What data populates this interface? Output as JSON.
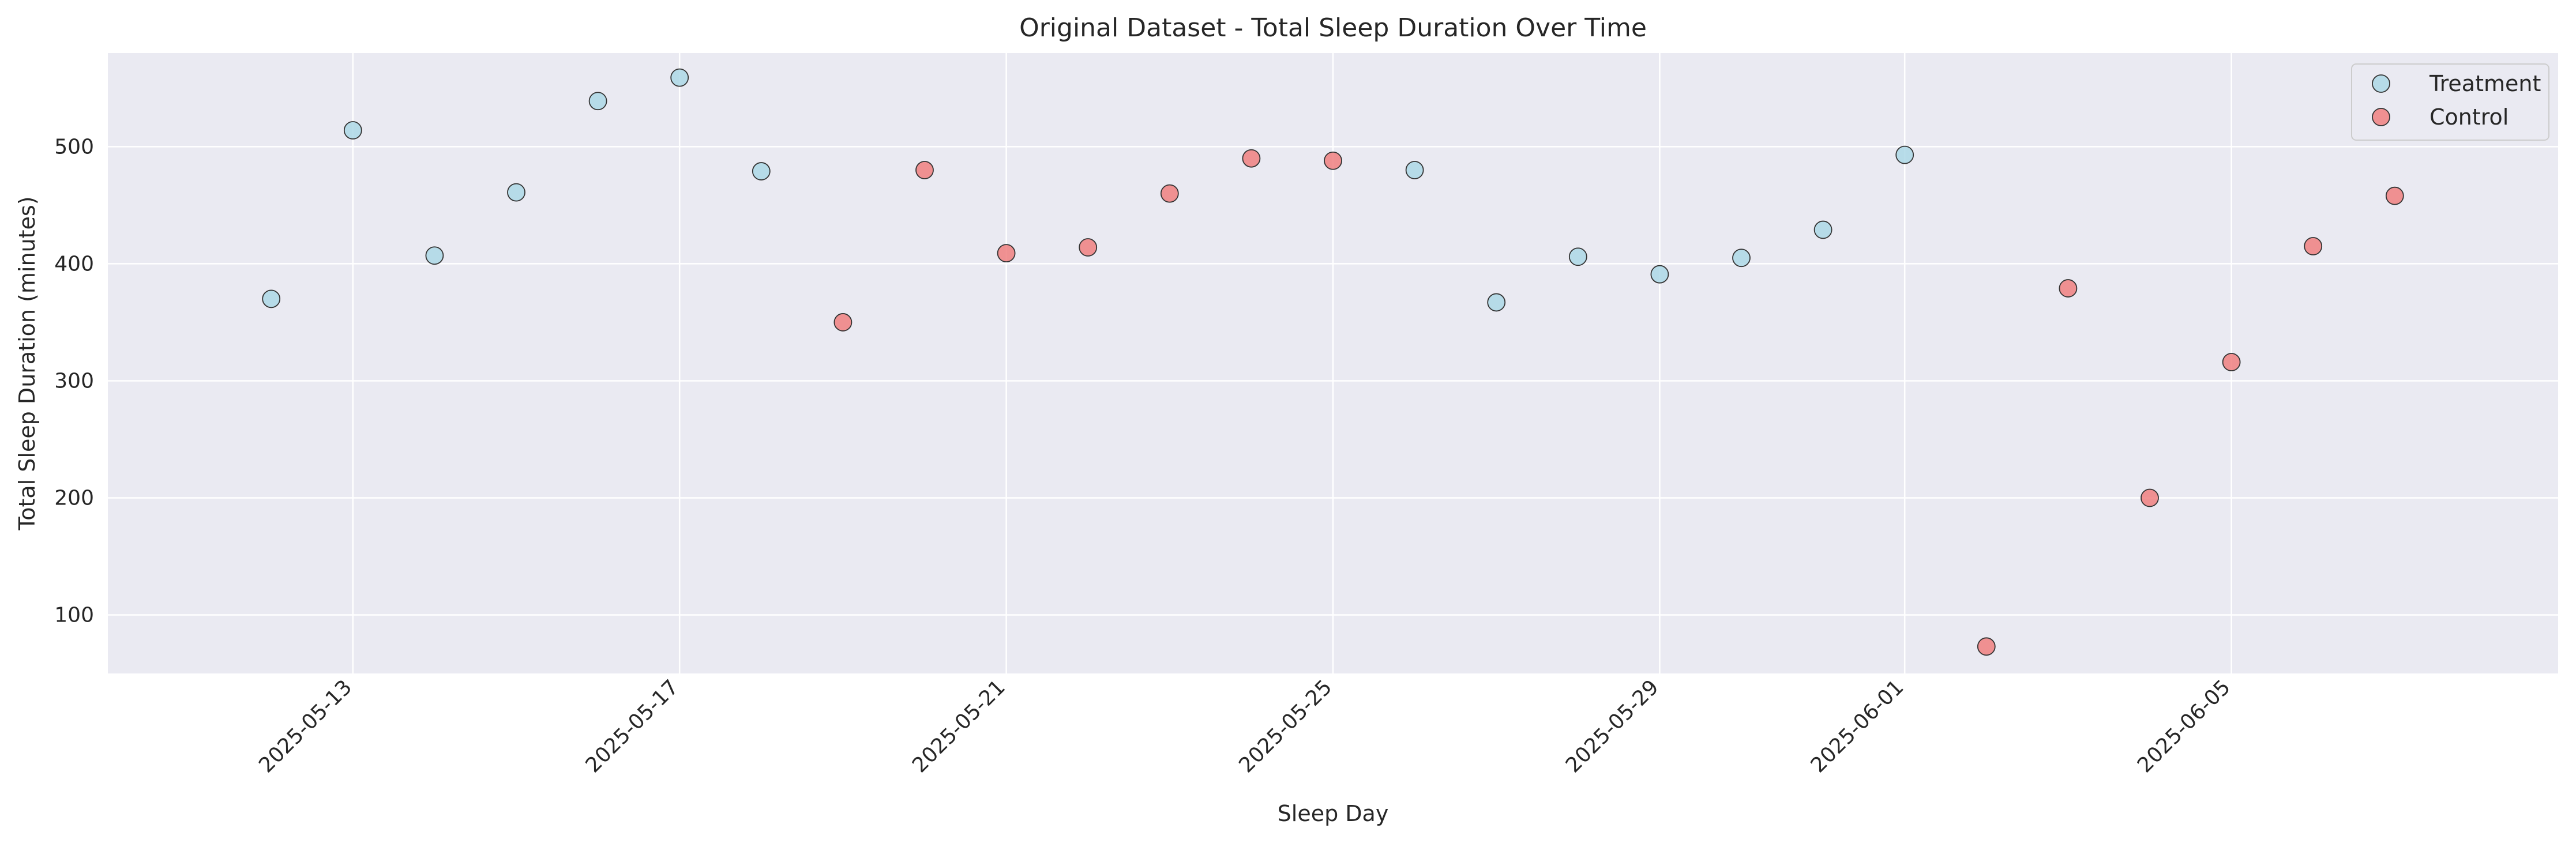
{
  "chart_data": {
    "type": "scatter",
    "title": "Original Dataset - Total Sleep Duration Over Time",
    "xlabel": "Sleep Day",
    "ylabel": "Total Sleep Duration (minutes)",
    "x_axis": {
      "type": "date",
      "range": [
        "2025-05-10",
        "2025-06-09"
      ],
      "ticks": [
        "2025-05-13",
        "2025-05-17",
        "2025-05-21",
        "2025-05-25",
        "2025-05-29",
        "2025-06-01",
        "2025-06-05"
      ]
    },
    "y_axis": {
      "range": [
        50,
        580
      ],
      "ticks": [
        100,
        200,
        300,
        400,
        500
      ]
    },
    "grid": true,
    "legend": {
      "position": "top-right"
    },
    "series": [
      {
        "name": "Treatment",
        "color": "#add8e6",
        "points": [
          {
            "x": "2025-05-12",
            "y": 370
          },
          {
            "x": "2025-05-13",
            "y": 514
          },
          {
            "x": "2025-05-14",
            "y": 407
          },
          {
            "x": "2025-05-15",
            "y": 461
          },
          {
            "x": "2025-05-16",
            "y": 539
          },
          {
            "x": "2025-05-17",
            "y": 559
          },
          {
            "x": "2025-05-18",
            "y": 479
          },
          {
            "x": "2025-05-26",
            "y": 480
          },
          {
            "x": "2025-05-27",
            "y": 367
          },
          {
            "x": "2025-05-28",
            "y": 406
          },
          {
            "x": "2025-05-29",
            "y": 391
          },
          {
            "x": "2025-05-30",
            "y": 405
          },
          {
            "x": "2025-05-31",
            "y": 429
          },
          {
            "x": "2025-06-01",
            "y": 493
          }
        ]
      },
      {
        "name": "Control",
        "color": "#f08080",
        "points": [
          {
            "x": "2025-05-19",
            "y": 350
          },
          {
            "x": "2025-05-20",
            "y": 480
          },
          {
            "x": "2025-05-21",
            "y": 409
          },
          {
            "x": "2025-05-22",
            "y": 414
          },
          {
            "x": "2025-05-23",
            "y": 460
          },
          {
            "x": "2025-05-24",
            "y": 490
          },
          {
            "x": "2025-05-25",
            "y": 488
          },
          {
            "x": "2025-06-02",
            "y": 73
          },
          {
            "x": "2025-06-03",
            "y": 379
          },
          {
            "x": "2025-06-04",
            "y": 200
          },
          {
            "x": "2025-06-05",
            "y": 316
          },
          {
            "x": "2025-06-06",
            "y": 415
          },
          {
            "x": "2025-06-07",
            "y": 458
          }
        ]
      }
    ]
  },
  "colors": {
    "plot_background": "#eaeaf2",
    "grid": "#ffffff",
    "marker_edge": "#333333"
  }
}
